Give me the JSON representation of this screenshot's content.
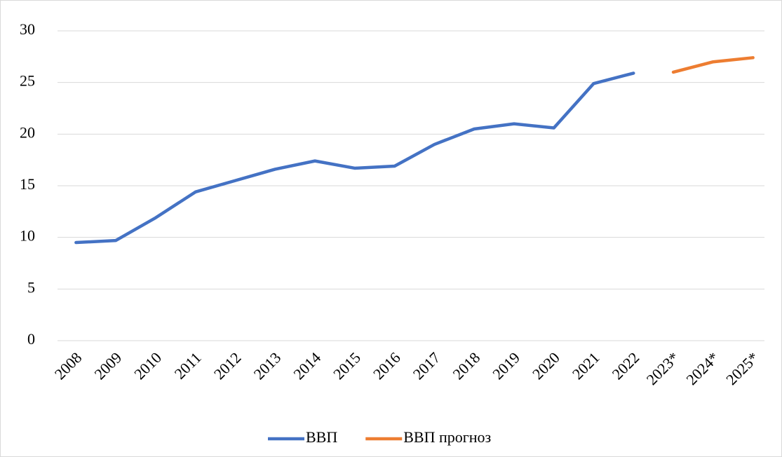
{
  "chart_data": {
    "type": "line",
    "categories": [
      "2008",
      "2009",
      "2010",
      "2011",
      "2012",
      "2013",
      "2014",
      "2015",
      "2016",
      "2017",
      "2018",
      "2019",
      "2020",
      "2021",
      "2022",
      "2023*",
      "2024*",
      "2025*"
    ],
    "series": [
      {
        "name": "ВВП",
        "color": "#4472c4",
        "values": [
          9.5,
          9.7,
          11.9,
          14.4,
          15.5,
          16.6,
          17.4,
          16.7,
          16.9,
          19.0,
          20.5,
          21.0,
          20.6,
          24.9,
          25.9,
          null,
          null,
          null
        ]
      },
      {
        "name": "ВВП  прогноз",
        "color": "#ed7d31",
        "values": [
          null,
          null,
          null,
          null,
          null,
          null,
          null,
          null,
          null,
          null,
          null,
          null,
          null,
          null,
          null,
          26.0,
          27.0,
          27.4
        ]
      }
    ],
    "ylim": [
      0,
      30
    ],
    "yticks": [
      0,
      5,
      10,
      15,
      20,
      25,
      30
    ],
    "grid": true,
    "legend": "bottom"
  }
}
